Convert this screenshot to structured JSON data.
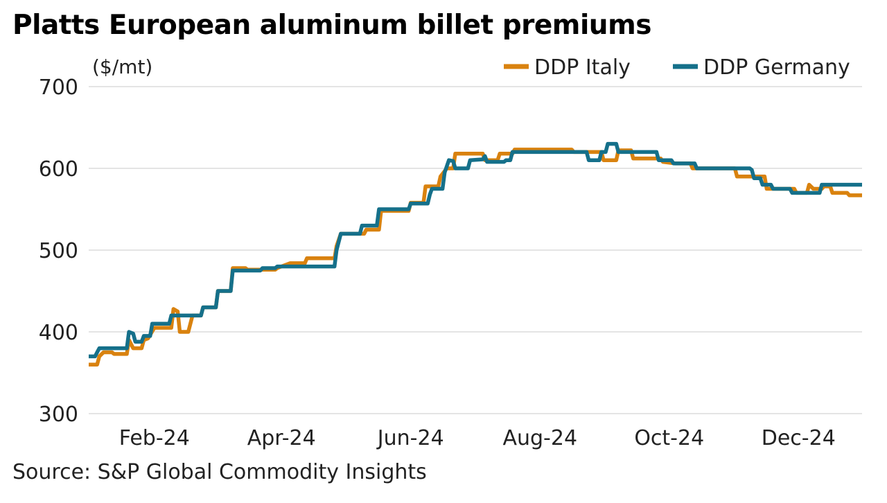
{
  "title": "Platts European aluminum billet premiums",
  "source": "Source: S&P Global Commodity Insights",
  "colors": {
    "italy": "#d9820f",
    "germany": "#15708a",
    "grid": "#d4d4d4"
  },
  "chart_data": {
    "type": "line",
    "title": "Platts European aluminum billet premiums",
    "ylabel": "($/mt)",
    "xlabel": "",
    "ylim": [
      300,
      700
    ],
    "yticks": [
      300,
      400,
      500,
      600,
      700
    ],
    "xlim": [
      "2024-01-01",
      "2024-12-31"
    ],
    "xticks": [
      {
        "date": "2024-02-01",
        "label": "Feb-24"
      },
      {
        "date": "2024-04-01",
        "label": "Apr-24"
      },
      {
        "date": "2024-06-01",
        "label": "Jun-24"
      },
      {
        "date": "2024-08-01",
        "label": "Aug-24"
      },
      {
        "date": "2024-10-01",
        "label": "Oct-24"
      },
      {
        "date": "2024-12-01",
        "label": "Dec-24"
      }
    ],
    "grid": true,
    "legend": "top-right",
    "series": [
      {
        "name": "DDP Italy",
        "color": "#d9820f",
        "points": [
          [
            "2024-01-01",
            360
          ],
          [
            "2024-01-05",
            360
          ],
          [
            "2024-01-06",
            370
          ],
          [
            "2024-01-08",
            375
          ],
          [
            "2024-01-12",
            375
          ],
          [
            "2024-01-13",
            373
          ],
          [
            "2024-01-19",
            373
          ],
          [
            "2024-01-20",
            390
          ],
          [
            "2024-01-22",
            380
          ],
          [
            "2024-01-26",
            380
          ],
          [
            "2024-01-27",
            390
          ],
          [
            "2024-01-29",
            392
          ],
          [
            "2024-02-01",
            405
          ],
          [
            "2024-02-09",
            405
          ],
          [
            "2024-02-10",
            428
          ],
          [
            "2024-02-12",
            425
          ],
          [
            "2024-02-13",
            400
          ],
          [
            "2024-02-17",
            400
          ],
          [
            "2024-02-19",
            420
          ],
          [
            "2024-02-23",
            420
          ],
          [
            "2024-02-24",
            430
          ],
          [
            "2024-03-01",
            430
          ],
          [
            "2024-03-02",
            450
          ],
          [
            "2024-03-08",
            450
          ],
          [
            "2024-03-09",
            478
          ],
          [
            "2024-03-15",
            478
          ],
          [
            "2024-03-16",
            476
          ],
          [
            "2024-03-29",
            476
          ],
          [
            "2024-03-30",
            478
          ],
          [
            "2024-04-01",
            480
          ],
          [
            "2024-04-05",
            484
          ],
          [
            "2024-04-12",
            484
          ],
          [
            "2024-04-13",
            490
          ],
          [
            "2024-04-26",
            490
          ],
          [
            "2024-04-27",
            505
          ],
          [
            "2024-04-29",
            520
          ],
          [
            "2024-05-10",
            520
          ],
          [
            "2024-05-11",
            525
          ],
          [
            "2024-05-17",
            525
          ],
          [
            "2024-05-18",
            548
          ],
          [
            "2024-05-31",
            548
          ],
          [
            "2024-06-01",
            558
          ],
          [
            "2024-06-07",
            558
          ],
          [
            "2024-06-08",
            578
          ],
          [
            "2024-06-14",
            578
          ],
          [
            "2024-06-15",
            590
          ],
          [
            "2024-06-18",
            600
          ],
          [
            "2024-06-21",
            600
          ],
          [
            "2024-06-22",
            618
          ],
          [
            "2024-07-05",
            618
          ],
          [
            "2024-07-06",
            610
          ],
          [
            "2024-07-12",
            610
          ],
          [
            "2024-07-13",
            618
          ],
          [
            "2024-07-19",
            618
          ],
          [
            "2024-07-20",
            623
          ],
          [
            "2024-08-16",
            623
          ],
          [
            "2024-08-17",
            620
          ],
          [
            "2024-08-30",
            620
          ],
          [
            "2024-08-31",
            610
          ],
          [
            "2024-09-06",
            610
          ],
          [
            "2024-09-07",
            622
          ],
          [
            "2024-09-13",
            622
          ],
          [
            "2024-09-14",
            612
          ],
          [
            "2024-09-27",
            612
          ],
          [
            "2024-09-28",
            608
          ],
          [
            "2024-10-04",
            606
          ],
          [
            "2024-10-11",
            606
          ],
          [
            "2024-10-12",
            600
          ],
          [
            "2024-11-01",
            600
          ],
          [
            "2024-11-02",
            590
          ],
          [
            "2024-11-15",
            590
          ],
          [
            "2024-11-16",
            575
          ],
          [
            "2024-11-29",
            575
          ],
          [
            "2024-11-30",
            570
          ],
          [
            "2024-12-05",
            570
          ],
          [
            "2024-12-06",
            580
          ],
          [
            "2024-12-08",
            575
          ],
          [
            "2024-12-12",
            575
          ],
          [
            "2024-12-13",
            578
          ],
          [
            "2024-12-16",
            578
          ],
          [
            "2024-12-17",
            570
          ],
          [
            "2024-12-24",
            570
          ],
          [
            "2024-12-25",
            567
          ],
          [
            "2024-12-31",
            567
          ]
        ]
      },
      {
        "name": "DDP Germany",
        "color": "#15708a",
        "points": [
          [
            "2024-01-01",
            370
          ],
          [
            "2024-01-04",
            370
          ],
          [
            "2024-01-05",
            375
          ],
          [
            "2024-01-06",
            380
          ],
          [
            "2024-01-19",
            380
          ],
          [
            "2024-01-20",
            400
          ],
          [
            "2024-01-22",
            398
          ],
          [
            "2024-01-23",
            388
          ],
          [
            "2024-01-26",
            388
          ],
          [
            "2024-01-27",
            395
          ],
          [
            "2024-01-30",
            395
          ],
          [
            "2024-01-31",
            410
          ],
          [
            "2024-02-08",
            410
          ],
          [
            "2024-02-09",
            420
          ],
          [
            "2024-02-23",
            420
          ],
          [
            "2024-02-24",
            430
          ],
          [
            "2024-03-01",
            430
          ],
          [
            "2024-03-02",
            450
          ],
          [
            "2024-03-08",
            450
          ],
          [
            "2024-03-09",
            475
          ],
          [
            "2024-03-22",
            475
          ],
          [
            "2024-03-23",
            478
          ],
          [
            "2024-03-29",
            478
          ],
          [
            "2024-03-30",
            480
          ],
          [
            "2024-04-26",
            480
          ],
          [
            "2024-04-27",
            500
          ],
          [
            "2024-04-29",
            520
          ],
          [
            "2024-05-08",
            520
          ],
          [
            "2024-05-09",
            530
          ],
          [
            "2024-05-16",
            530
          ],
          [
            "2024-05-17",
            550
          ],
          [
            "2024-05-31",
            550
          ],
          [
            "2024-06-01",
            557
          ],
          [
            "2024-06-09",
            557
          ],
          [
            "2024-06-10",
            568
          ],
          [
            "2024-06-11",
            575
          ],
          [
            "2024-06-16",
            575
          ],
          [
            "2024-06-17",
            595
          ],
          [
            "2024-06-19",
            610
          ],
          [
            "2024-06-21",
            609
          ],
          [
            "2024-06-22",
            600
          ],
          [
            "2024-06-28",
            600
          ],
          [
            "2024-06-29",
            610
          ],
          [
            "2024-07-05",
            611
          ],
          [
            "2024-07-06",
            615
          ],
          [
            "2024-07-07",
            608
          ],
          [
            "2024-07-15",
            608
          ],
          [
            "2024-07-16",
            610
          ],
          [
            "2024-07-18",
            610
          ],
          [
            "2024-07-19",
            620
          ],
          [
            "2024-08-23",
            620
          ],
          [
            "2024-08-24",
            610
          ],
          [
            "2024-08-29",
            610
          ],
          [
            "2024-08-30",
            620
          ],
          [
            "2024-09-01",
            620
          ],
          [
            "2024-09-02",
            630
          ],
          [
            "2024-09-06",
            630
          ],
          [
            "2024-09-07",
            620
          ],
          [
            "2024-09-25",
            620
          ],
          [
            "2024-09-26",
            610
          ],
          [
            "2024-10-02",
            610
          ],
          [
            "2024-10-03",
            606
          ],
          [
            "2024-10-13",
            606
          ],
          [
            "2024-10-14",
            600
          ],
          [
            "2024-11-08",
            600
          ],
          [
            "2024-11-09",
            598
          ],
          [
            "2024-11-10",
            588
          ],
          [
            "2024-11-13",
            588
          ],
          [
            "2024-11-14",
            580
          ],
          [
            "2024-11-18",
            580
          ],
          [
            "2024-11-19",
            575
          ],
          [
            "2024-11-27",
            575
          ],
          [
            "2024-11-28",
            570
          ],
          [
            "2024-12-11",
            570
          ],
          [
            "2024-12-12",
            580
          ],
          [
            "2024-12-31",
            580
          ]
        ]
      }
    ]
  }
}
